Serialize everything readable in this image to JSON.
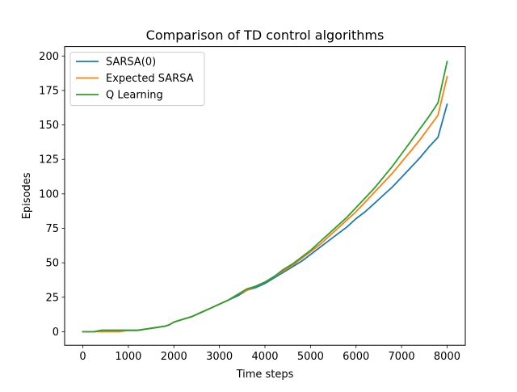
{
  "chart_data": {
    "type": "line",
    "title": "Comparison of TD control algorithms",
    "xlabel": "Time steps",
    "ylabel": "Episodes",
    "xlim": [
      -400,
      8400
    ],
    "ylim": [
      -9.85,
      206.85
    ],
    "xticks": [
      0,
      1000,
      2000,
      3000,
      4000,
      5000,
      6000,
      7000,
      8000
    ],
    "yticks": [
      0,
      25,
      50,
      75,
      100,
      125,
      150,
      175,
      200
    ],
    "grid": false,
    "legend_position": "top-left",
    "series": [
      {
        "name": "SARSA(0)",
        "color": "#1f77b4",
        "x": [
          0,
          250,
          400,
          600,
          800,
          1000,
          1200,
          1400,
          1600,
          1800,
          1900,
          2000,
          2200,
          2400,
          2600,
          2800,
          3000,
          3200,
          3400,
          3600,
          3800,
          4000,
          4200,
          4400,
          4600,
          4800,
          5000,
          5200,
          5400,
          5600,
          5800,
          6000,
          6200,
          6400,
          6600,
          6800,
          7000,
          7200,
          7400,
          7600,
          7800,
          8000
        ],
        "y": [
          0,
          0,
          1,
          1,
          1,
          1,
          1,
          2,
          3,
          4,
          5,
          7,
          9,
          11,
          14,
          17,
          20,
          23,
          26,
          30,
          32,
          35,
          39,
          43,
          47,
          51,
          56,
          61,
          66,
          71,
          76,
          82,
          87,
          93,
          99,
          105,
          112,
          119,
          126,
          134,
          141,
          165
        ]
      },
      {
        "name": "Expected SARSA",
        "color": "#ff7f0e",
        "x": [
          0,
          250,
          400,
          600,
          800,
          1000,
          1200,
          1400,
          1600,
          1800,
          1900,
          2000,
          2200,
          2400,
          2600,
          2800,
          3000,
          3200,
          3400,
          3600,
          3800,
          4000,
          4200,
          4400,
          4600,
          4800,
          5000,
          5200,
          5400,
          5600,
          5800,
          6000,
          6200,
          6400,
          6600,
          6800,
          7000,
          7200,
          7400,
          7600,
          7800,
          8000
        ],
        "y": [
          0,
          0,
          0,
          0,
          0,
          1,
          1,
          2,
          3,
          4,
          5,
          7,
          9,
          11,
          14,
          17,
          20,
          23,
          27,
          30,
          33,
          36,
          40,
          44,
          48,
          53,
          58,
          63,
          69,
          75,
          81,
          87,
          94,
          101,
          108,
          115,
          123,
          131,
          139,
          148,
          157,
          185
        ]
      },
      {
        "name": "Q Learning",
        "color": "#2ca02c",
        "x": [
          0,
          250,
          400,
          600,
          800,
          1000,
          1200,
          1400,
          1600,
          1800,
          1900,
          2000,
          2200,
          2400,
          2600,
          2800,
          3000,
          3200,
          3400,
          3600,
          3800,
          4000,
          4200,
          4400,
          4600,
          4800,
          5000,
          5200,
          5400,
          5600,
          5800,
          6000,
          6200,
          6400,
          6600,
          6800,
          7000,
          7200,
          7400,
          7600,
          7800,
          8000
        ],
        "y": [
          0,
          0,
          1,
          1,
          1,
          1,
          1,
          2,
          3,
          4,
          5,
          7,
          9,
          11,
          14,
          17,
          20,
          23,
          27,
          31,
          33,
          36,
          40,
          45,
          49,
          54,
          59,
          65,
          71,
          77,
          83,
          90,
          97,
          104,
          112,
          120,
          129,
          138,
          147,
          156,
          166,
          196
        ]
      }
    ]
  }
}
